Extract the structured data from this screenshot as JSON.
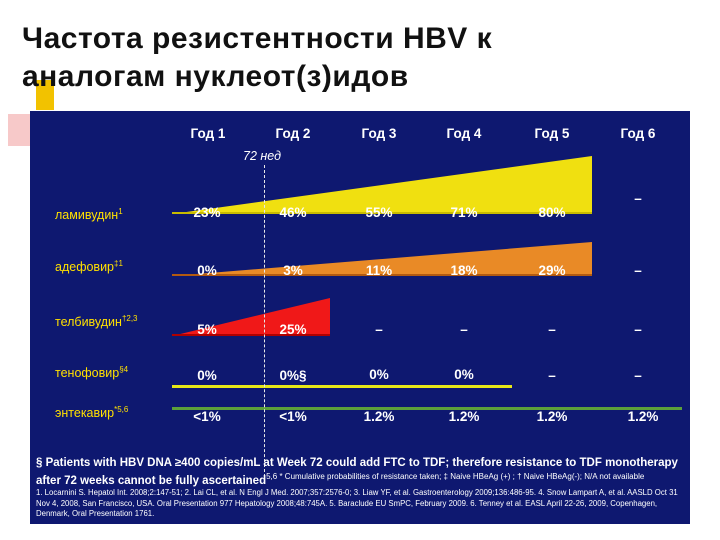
{
  "title_line1": "Частота резистентности HBV к",
  "title_line2": "аналогам нуклеот(з)идов",
  "chart_data": {
    "type": "area",
    "categories": [
      "Год 1",
      "Год 2",
      "Год 3",
      "Год 4",
      "Год 5",
      "Год 6"
    ],
    "week_marker": "72 нед",
    "series": [
      {
        "name": "ламивудин",
        "sup": "1",
        "values": [
          "23%",
          "46%",
          "55%",
          "71%",
          "80%",
          "–"
        ],
        "numeric": [
          23,
          46,
          55,
          71,
          80,
          null
        ],
        "color": "#f0e010"
      },
      {
        "name": "адефовир",
        "sup": "‡1",
        "values": [
          "0%",
          "3%",
          "11%",
          "18%",
          "29%",
          "–"
        ],
        "numeric": [
          0,
          3,
          11,
          18,
          29,
          null
        ],
        "color": "#e98a26"
      },
      {
        "name": "телбивудин",
        "sup": "†2,3",
        "values": [
          "5%",
          "25%",
          "–",
          "–",
          "–",
          "–"
        ],
        "numeric": [
          5,
          25,
          null,
          null,
          null,
          null
        ],
        "color": "#f01818"
      },
      {
        "name": "тенофовир",
        "sup": "§4",
        "values": [
          "0%",
          "0%§",
          "0%",
          "0%",
          "–",
          "–"
        ],
        "numeric": [
          0,
          0,
          0,
          0,
          null,
          null
        ],
        "color": "#e7e717"
      },
      {
        "name": "энтекавир",
        "sup": "*5,6",
        "values": [
          "<1%",
          "<1%",
          "1.2%",
          "1.2%",
          "1.2%",
          "1.2%"
        ],
        "numeric": [
          1,
          1,
          1.2,
          1.2,
          1.2,
          1.2
        ],
        "color": "#5ca03a"
      }
    ]
  },
  "footnote_bold": "§ Patients with HBV DNA ≥400 copies/mL at Week 72 could add FTC to TDF; therefore resistance to TDF monotherapy after 72 weeks cannot be fully ascertained",
  "footnote_small": "5,6 * Cumulative probabilities of resistance taken; ‡ Naive HBeAg (+) ; † Naive HBeAg(-); N/A not available",
  "references": "1. Locarnini S. Hepatol Int. 2008;2:147-51; 2. Lai CL, et al. N Engl J Med. 2007;357:2576-0; 3. Liaw YF, et al. Gastroenterology 2009;136:486-95. 4. Snow Lampart A, et al. AASLD Oct 31 Nov 4, 2008, San Francisco, USA. Oral Presentation 977 Hepatology 2008;48:745A. 5. Baraclude EU SmPC, February 2009. 6. Tenney et al. EASL April 22-26, 2009, Copenhagen, Denmark, Oral Presentation 1761."
}
